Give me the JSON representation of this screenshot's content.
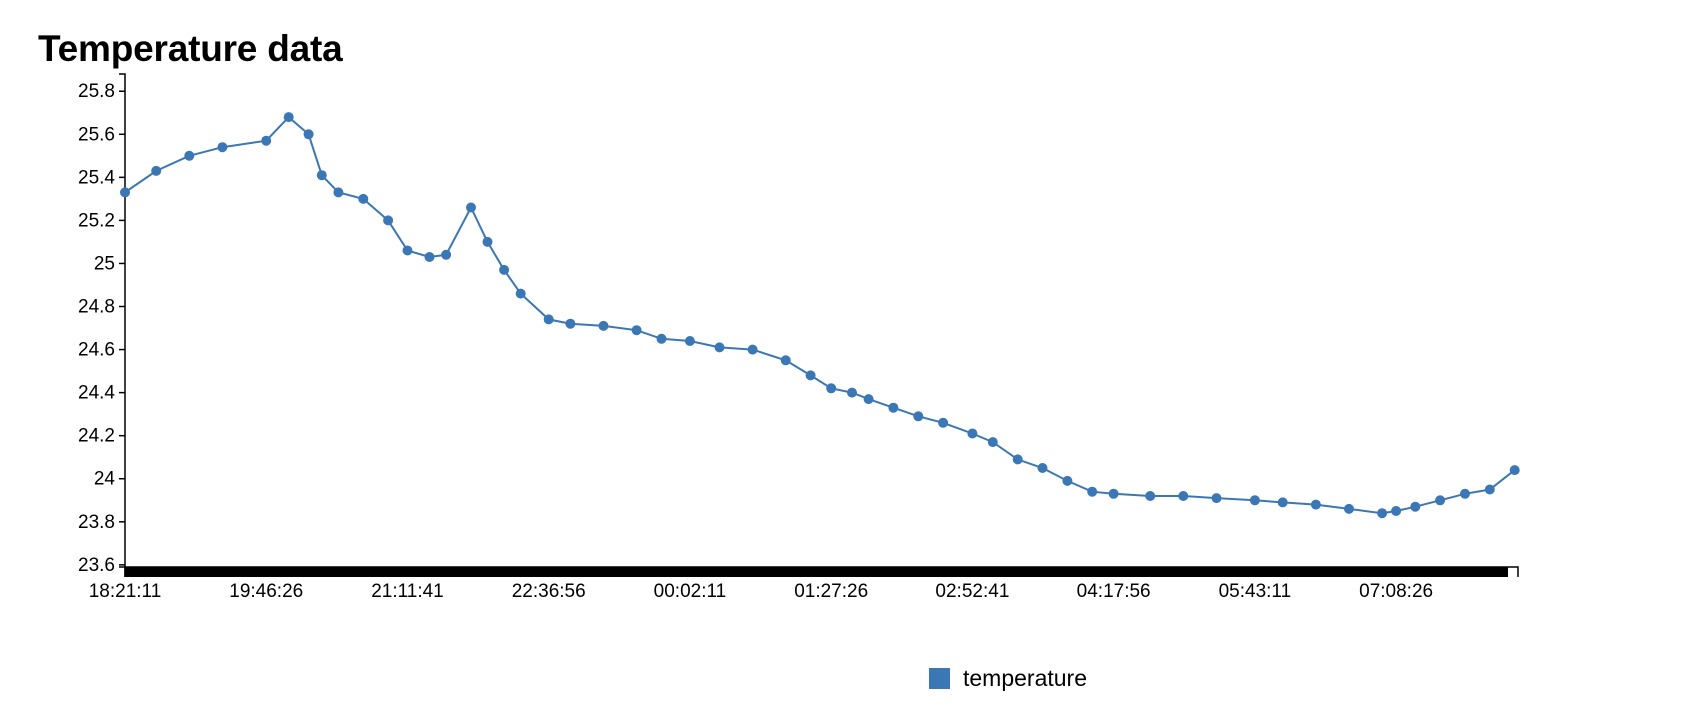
{
  "chart_data": {
    "type": "line",
    "title": "Temperature data",
    "xlabel": "",
    "ylabel": "",
    "y_ticks": [
      "23.6",
      "23.8",
      "24",
      "24.2",
      "24.4",
      "24.6",
      "24.8",
      "25",
      "25.2",
      "25.4",
      "25.6",
      "25.8"
    ],
    "x_ticks": [
      "18:21:11",
      "19:46:26",
      "21:11:41",
      "22:36:56",
      "00:02:11",
      "01:27:26",
      "02:52:41",
      "04:17:56",
      "05:43:11",
      "07:08:26"
    ],
    "ylim": [
      23.59,
      25.88
    ],
    "xlim": [
      "18:21:11",
      "08:22:00"
    ],
    "markers": true,
    "grid": false,
    "legend_position": "bottom-center",
    "series": [
      {
        "name": "temperature",
        "color": "#3b77b5",
        "x": [
          "18:21:11",
          "18:40:00",
          "19:00:00",
          "19:20:00",
          "19:46:26",
          "20:00:00",
          "20:12:00",
          "20:20:00",
          "20:30:00",
          "20:45:00",
          "21:00:00",
          "21:11:41",
          "21:25:00",
          "21:35:00",
          "21:50:00",
          "22:00:00",
          "22:10:00",
          "22:20:00",
          "22:36:56",
          "22:50:00",
          "23:10:00",
          "23:30:00",
          "23:45:00",
          "00:02:11",
          "00:20:00",
          "00:40:00",
          "01:00:00",
          "01:15:00",
          "01:27:26",
          "01:40:00",
          "01:50:00",
          "02:05:00",
          "02:20:00",
          "02:35:00",
          "02:52:41",
          "03:05:00",
          "03:20:00",
          "03:35:00",
          "03:50:00",
          "04:05:00",
          "04:17:56",
          "04:40:00",
          "05:00:00",
          "05:20:00",
          "05:43:11",
          "06:00:00",
          "06:20:00",
          "06:40:00",
          "07:00:00",
          "07:08:26",
          "07:20:00",
          "07:35:00",
          "07:50:00",
          "08:05:00",
          "08:20:00"
        ],
        "values": [
          25.33,
          25.43,
          25.5,
          25.54,
          25.57,
          25.68,
          25.6,
          25.41,
          25.33,
          25.3,
          25.2,
          25.06,
          25.03,
          25.04,
          25.26,
          25.1,
          24.97,
          24.86,
          24.74,
          24.72,
          24.71,
          24.69,
          24.65,
          24.64,
          24.61,
          24.6,
          24.55,
          24.48,
          24.42,
          24.4,
          24.37,
          24.33,
          24.29,
          24.26,
          24.21,
          24.17,
          24.09,
          24.05,
          23.99,
          23.94,
          23.93,
          23.92,
          23.92,
          23.91,
          23.9,
          23.89,
          23.88,
          23.86,
          23.84,
          23.85,
          23.87,
          23.9,
          23.93,
          23.95,
          24.04
        ]
      }
    ]
  }
}
